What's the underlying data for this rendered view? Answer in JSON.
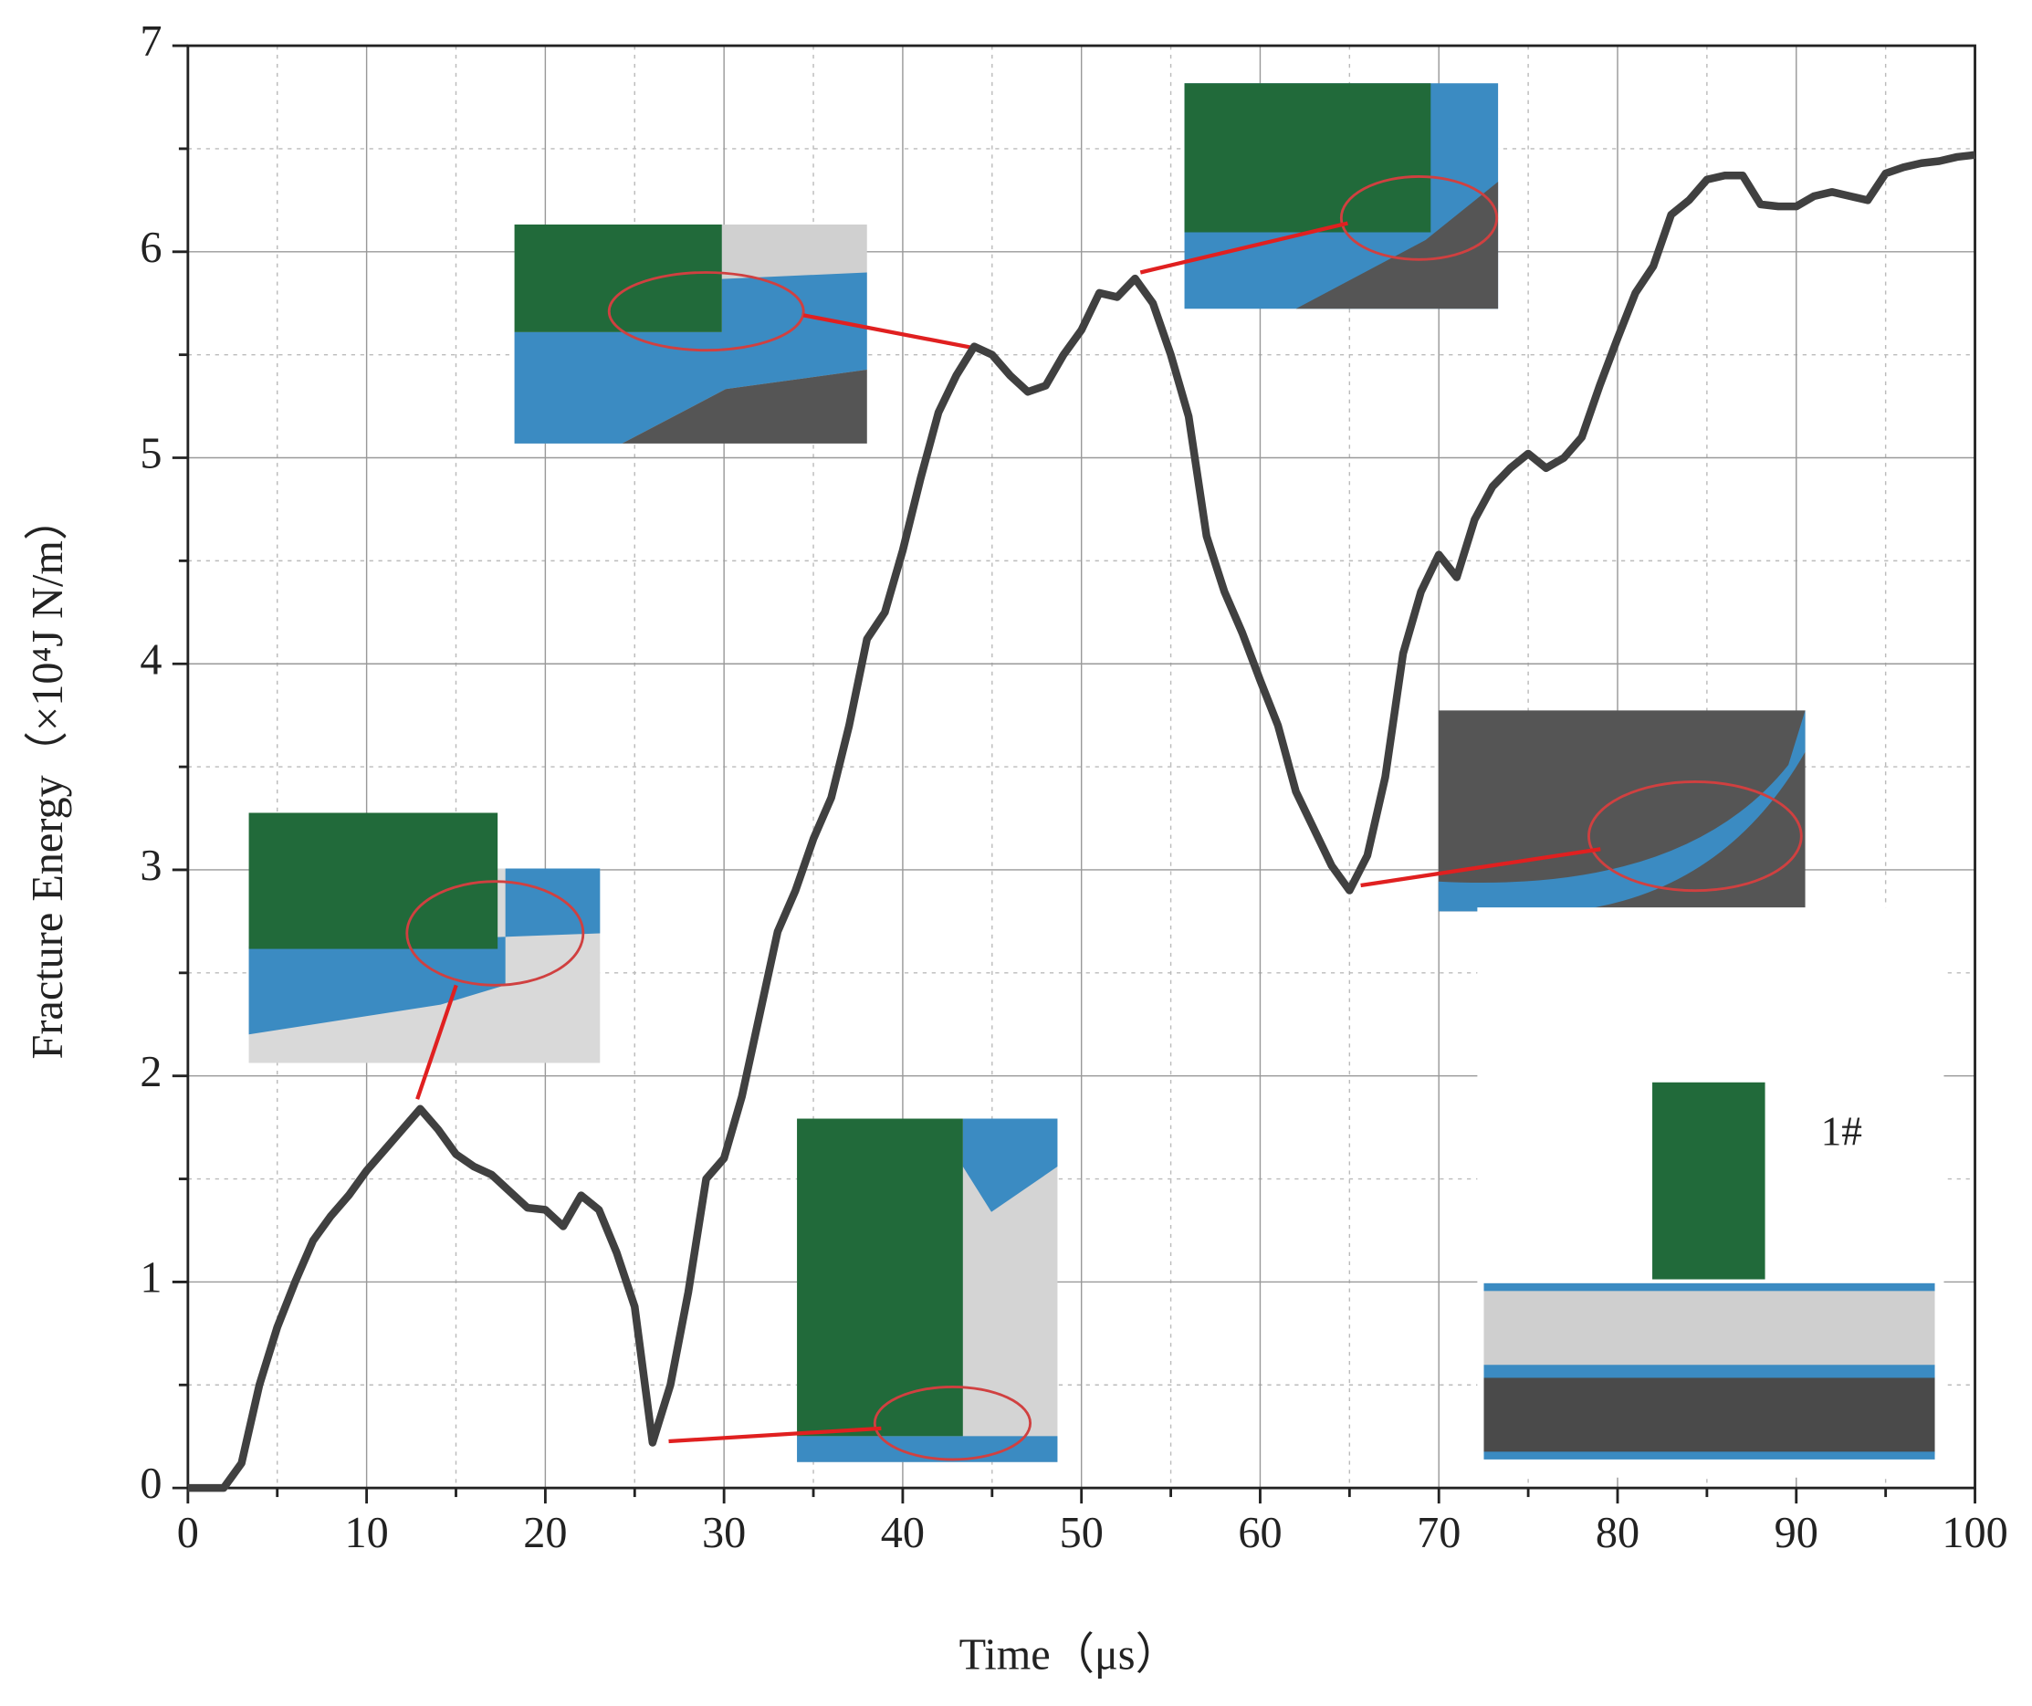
{
  "chart_data": {
    "type": "line",
    "x_label": "Time（μs）",
    "y_label": "Fracture Energy（×10⁴J N/m）",
    "annotation": "1#",
    "x": [
      0,
      1,
      2,
      3,
      4,
      5,
      6,
      7,
      8,
      9,
      10,
      11,
      12,
      13,
      14,
      15,
      16,
      17,
      18,
      19,
      20,
      21,
      22,
      23,
      24,
      25,
      26,
      27,
      28,
      29,
      30,
      31,
      32,
      33,
      34,
      35,
      36,
      37,
      38,
      39,
      40,
      41,
      42,
      43,
      44,
      45,
      46,
      47,
      48,
      49,
      50,
      51,
      52,
      53,
      54,
      55,
      56,
      57,
      58,
      59,
      60,
      61,
      62,
      63,
      64,
      65,
      66,
      67,
      68,
      69,
      70,
      71,
      72,
      73,
      74,
      75,
      76,
      77,
      78,
      79,
      80,
      81,
      82,
      83,
      84,
      85,
      86,
      87,
      88,
      89,
      90,
      91,
      92,
      93,
      94,
      95,
      96,
      97,
      98,
      99,
      100
    ],
    "series": [
      {
        "color": "#404040",
        "values": [
          0,
          0,
          0,
          0.12,
          0.5,
          0.78,
          1.0,
          1.2,
          1.32,
          1.42,
          1.54,
          1.64,
          1.74,
          1.84,
          1.74,
          1.62,
          1.56,
          1.52,
          1.44,
          1.36,
          1.35,
          1.27,
          1.42,
          1.35,
          1.14,
          0.88,
          0.22,
          0.5,
          0.95,
          1.5,
          1.6,
          1.9,
          2.3,
          2.7,
          2.9,
          3.15,
          3.35,
          3.7,
          4.12,
          4.25,
          4.55,
          4.9,
          5.22,
          5.4,
          5.54,
          5.5,
          5.4,
          5.32,
          5.35,
          5.5,
          5.62,
          5.8,
          5.78,
          5.87,
          5.75,
          5.5,
          5.2,
          4.62,
          4.35,
          4.15,
          3.92,
          3.7,
          3.38,
          3.2,
          3.02,
          2.9,
          3.07,
          3.45,
          4.05,
          4.35,
          4.53,
          4.42,
          4.7,
          4.86,
          4.95,
          5.02,
          4.95,
          5.0,
          5.1,
          5.35,
          5.58,
          5.8,
          5.93,
          6.18,
          6.25,
          6.35,
          6.37,
          6.37,
          6.23,
          6.22,
          6.22,
          6.27,
          6.29,
          6.27,
          6.25,
          6.38,
          6.41,
          6.43,
          6.44,
          6.46,
          6.47
        ]
      }
    ],
    "xlim": [
      0,
      100
    ],
    "xticks": [
      0,
      10,
      20,
      30,
      40,
      50,
      60,
      70,
      80,
      90,
      100
    ],
    "xticks_minor": [
      5,
      15,
      25,
      35,
      45,
      55,
      65,
      75,
      85,
      95
    ],
    "ylim": [
      0,
      7
    ],
    "yticks": [
      0,
      1,
      2,
      3,
      4,
      5,
      6,
      7
    ],
    "yticks_minor": [
      0.5,
      1.5,
      2.5,
      3.5,
      4.5,
      5.5,
      6.5
    ],
    "grid": true
  }
}
